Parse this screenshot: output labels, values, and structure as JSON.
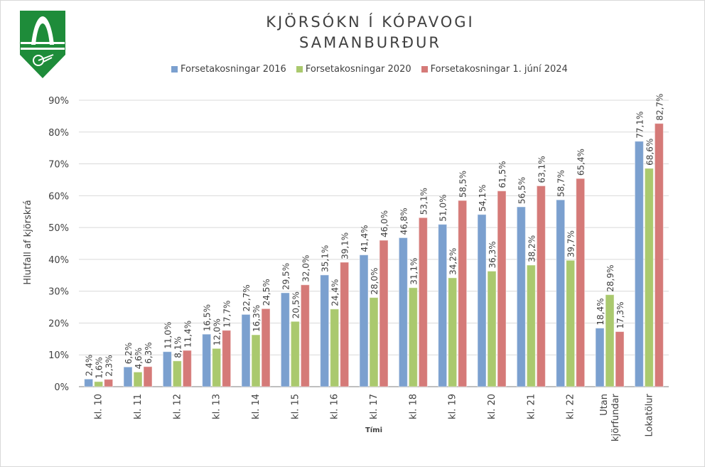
{
  "chart_data": {
    "type": "bar",
    "title": "KJÖRSÓKN Í KÓPAVOGI",
    "subtitle": "SAMANBURÐUR",
    "xlabel": "Tími",
    "ylabel": "Hlutfall af kjörskrá",
    "ylim": [
      0,
      90
    ],
    "yticks": [
      "0%",
      "10%",
      "20%",
      "30%",
      "40%",
      "50%",
      "60%",
      "70%",
      "80%",
      "90%"
    ],
    "grid": true,
    "legend_position": "top",
    "categories": [
      "kl. 10",
      "kl. 11",
      "kl. 12",
      "kl. 13",
      "kl. 14",
      "kl. 15",
      "kl. 16",
      "kl. 17",
      "kl. 18",
      "kl. 19",
      "kl. 20",
      "kl. 21",
      "kl. 22",
      "Utan kjörfundar",
      "Lokatölur"
    ],
    "series": [
      {
        "name": "Forsetakosningar 2016",
        "color": "#7ba0cf",
        "values": [
          2.4,
          6.2,
          11.0,
          16.5,
          22.7,
          29.5,
          35.1,
          41.4,
          46.8,
          51.0,
          54.1,
          56.5,
          58.7,
          18.4,
          77.1
        ]
      },
      {
        "name": "Forsetakosningar 2020",
        "color": "#aac96e",
        "values": [
          1.6,
          4.6,
          8.1,
          12.0,
          16.3,
          20.5,
          24.4,
          28.0,
          31.1,
          34.2,
          36.3,
          38.2,
          39.7,
          28.9,
          68.6
        ]
      },
      {
        "name": "Forsetakosningar 1. júní 2024",
        "color": "#d57a78",
        "values": [
          2.3,
          6.3,
          11.4,
          17.7,
          24.5,
          32.0,
          39.1,
          46.0,
          53.1,
          58.5,
          61.5,
          63.1,
          65.4,
          17.3,
          82.7
        ]
      }
    ]
  },
  "logo_color": "#1e8c3a"
}
